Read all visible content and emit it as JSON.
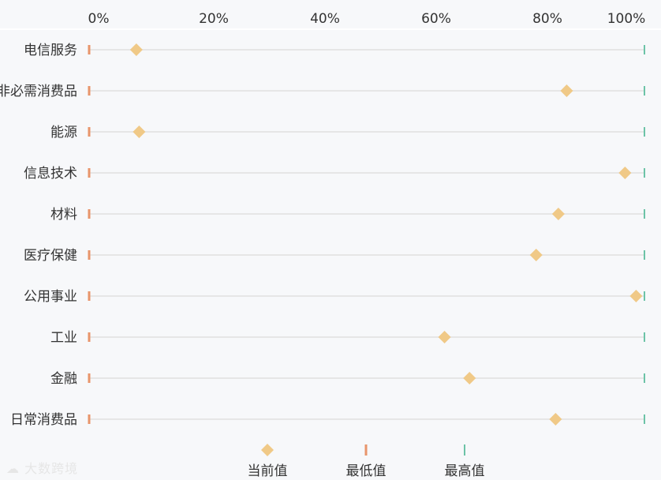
{
  "chart_data": {
    "type": "dot-range",
    "x_ticks": [
      "0%",
      "20%",
      "40%",
      "60%",
      "80%",
      "100%"
    ],
    "xlim": [
      0,
      100
    ],
    "categories": [
      "电信服务",
      "非必需消费品",
      "能源",
      "信息技术",
      "材料",
      "医疗保健",
      "公用事业",
      "工业",
      "金融",
      "日常消费品"
    ],
    "series": [
      {
        "name": "当前值",
        "marker": "diamond",
        "color": "#f0c987",
        "values": [
          8.5,
          86.0,
          9.0,
          96.5,
          84.5,
          80.5,
          98.5,
          64.0,
          68.5,
          84.0
        ]
      },
      {
        "name": "最低值",
        "marker": "tick",
        "color": "#e8956b",
        "values": [
          0,
          0,
          0,
          0,
          0,
          0,
          0,
          0,
          0,
          0
        ]
      },
      {
        "name": "最高值",
        "marker": "tick",
        "color": "#6cc3a7",
        "values": [
          100,
          100,
          100,
          100,
          100,
          100,
          100,
          100,
          100,
          100
        ]
      }
    ],
    "grid": true,
    "legend_position": "bottom"
  },
  "watermark": "大数跨境",
  "colors": {
    "track": "#e6e6e6",
    "background": "#f7f8fa"
  }
}
